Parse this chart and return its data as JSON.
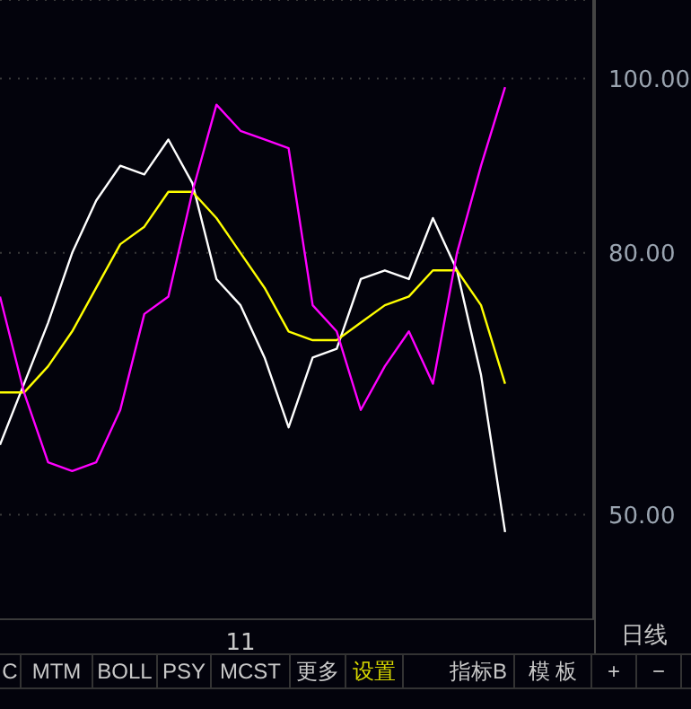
{
  "chart_data": {
    "type": "line",
    "categories": [
      null,
      null,
      null,
      null,
      null,
      null,
      null,
      null,
      null,
      null,
      "11",
      null,
      null,
      null,
      null,
      null,
      null,
      null,
      null,
      null,
      null,
      null
    ],
    "series": [
      {
        "color": "#ffffff",
        "values": [
          58,
          65,
          72,
          80,
          86,
          90,
          89,
          93,
          88,
          77,
          74,
          68,
          60,
          68,
          69,
          77,
          78,
          77,
          84,
          78,
          66,
          48
        ]
      },
      {
        "color": "#ffff00",
        "values": [
          64,
          64,
          67,
          71,
          76,
          81,
          83,
          87,
          87,
          84,
          80,
          76,
          71,
          70,
          70,
          72,
          74,
          75,
          78,
          78,
          74,
          65
        ]
      },
      {
        "color": "#ff00ff",
        "values": [
          75,
          64,
          56,
          55,
          56,
          62,
          73,
          75,
          87,
          97,
          94,
          93,
          92,
          74,
          71,
          62,
          67,
          71,
          65,
          80,
          90,
          99
        ]
      }
    ],
    "ylim": [
      38,
      109
    ],
    "yticks": [
      {
        "value": 50,
        "label": "50.00"
      },
      {
        "value": 80,
        "label": "80.00"
      },
      {
        "value": 100,
        "label": "100.00"
      }
    ],
    "grid": "y",
    "marker": "none",
    "line_style": "solid",
    "annotations": [
      "C",
      "MTM",
      "BOLL",
      "PSY",
      "MCST",
      "更多",
      "设置",
      "指标B",
      "模 板",
      "+",
      "−",
      "日线"
    ]
  }
}
